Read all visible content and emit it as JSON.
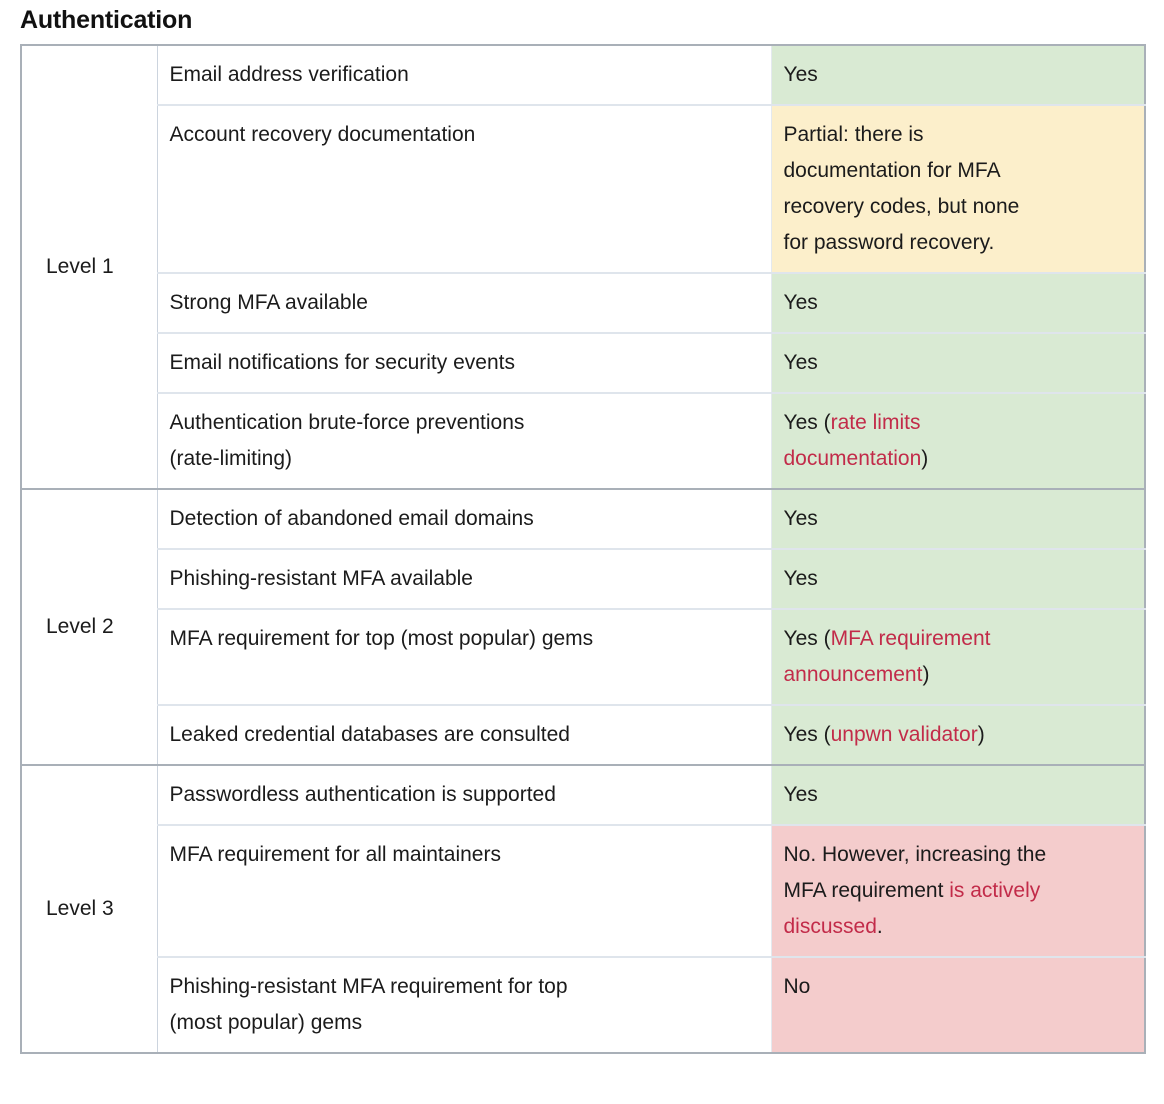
{
  "title": "Authentication",
  "colors": {
    "yes": "#d9ead3",
    "partial": "#fcefcb",
    "no": "#f4cccc",
    "link": "#c22b49"
  },
  "table": {
    "sections": [
      {
        "level": "Level 1",
        "rows": [
          {
            "criterion": "Email address verification",
            "status": {
              "kind": "yes",
              "parts": [
                {
                  "text": "Yes",
                  "link": false
                }
              ]
            }
          },
          {
            "criterion": "Account recovery documentation",
            "status": {
              "kind": "partial",
              "parts": [
                {
                  "text": "Partial: there is\ndocumentation for MFA\nrecovery codes, but none\nfor password recovery.",
                  "link": false
                }
              ]
            }
          },
          {
            "criterion": "Strong MFA available",
            "status": {
              "kind": "yes",
              "parts": [
                {
                  "text": "Yes",
                  "link": false
                }
              ]
            }
          },
          {
            "criterion": "Email notifications for security events",
            "status": {
              "kind": "yes",
              "parts": [
                {
                  "text": "Yes",
                  "link": false
                }
              ]
            }
          },
          {
            "criterion": "Authentication brute-force preventions\n(rate-limiting)",
            "status": {
              "kind": "yes",
              "parts": [
                {
                  "text": "Yes (",
                  "link": false
                },
                {
                  "text": "rate limits\ndocumentation",
                  "link": true
                },
                {
                  "text": ")",
                  "link": false
                }
              ]
            }
          }
        ]
      },
      {
        "level": "Level 2",
        "rows": [
          {
            "criterion": "Detection of abandoned email domains",
            "status": {
              "kind": "yes",
              "parts": [
                {
                  "text": "Yes",
                  "link": false
                }
              ]
            }
          },
          {
            "criterion": "Phishing-resistant MFA available",
            "status": {
              "kind": "yes",
              "parts": [
                {
                  "text": "Yes",
                  "link": false
                }
              ]
            }
          },
          {
            "criterion": "MFA requirement for top (most popular) gems",
            "status": {
              "kind": "yes",
              "parts": [
                {
                  "text": "Yes (",
                  "link": false
                },
                {
                  "text": "MFA requirement\nannouncement",
                  "link": true
                },
                {
                  "text": ")",
                  "link": false
                }
              ]
            }
          },
          {
            "criterion": "Leaked credential databases are consulted",
            "status": {
              "kind": "yes",
              "parts": [
                {
                  "text": "Yes (",
                  "link": false
                },
                {
                  "text": "unpwn validator",
                  "link": true
                },
                {
                  "text": ")",
                  "link": false
                }
              ]
            }
          }
        ]
      },
      {
        "level": "Level 3",
        "rows": [
          {
            "criterion": "Passwordless authentication is supported",
            "status": {
              "kind": "yes",
              "parts": [
                {
                  "text": "Yes",
                  "link": false
                }
              ]
            }
          },
          {
            "criterion": "MFA requirement for all maintainers",
            "status": {
              "kind": "no",
              "parts": [
                {
                  "text": "No. However, increasing the\nMFA requirement ",
                  "link": false
                },
                {
                  "text": "is actively\ndiscussed",
                  "link": true
                },
                {
                  "text": ".",
                  "link": false
                }
              ]
            }
          },
          {
            "criterion": "Phishing-resistant MFA requirement for top\n(most popular) gems",
            "status": {
              "kind": "no",
              "parts": [
                {
                  "text": "No",
                  "link": false
                }
              ]
            }
          }
        ]
      }
    ]
  }
}
